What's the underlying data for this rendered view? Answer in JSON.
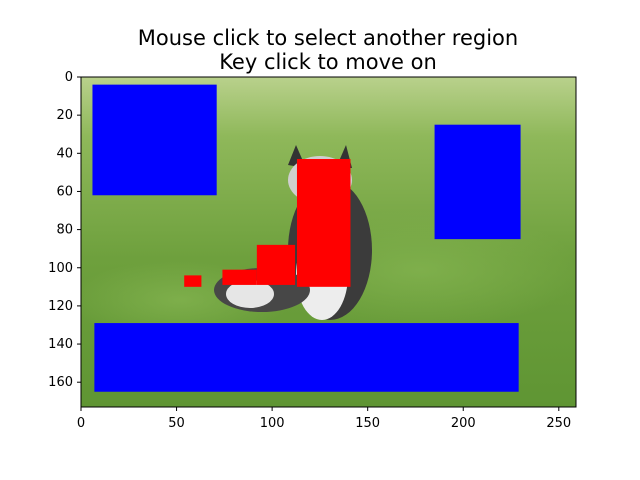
{
  "figure": {
    "title_lines": [
      "Mouse click to select another region",
      "Key click to move on"
    ]
  },
  "image": {
    "description": "photo",
    "colors": {
      "sky_grass_top": "#b7cf8a",
      "grass": "#6fa13e",
      "grass_dark": "#4f8229",
      "dog_dark": "#3a3a3a",
      "dog_light": "#e9e9e9"
    }
  },
  "chart_data": {
    "type": "image",
    "xlim": [
      0,
      259
    ],
    "ylim": [
      173,
      0
    ],
    "x_ticks": [
      0,
      50,
      100,
      150,
      200,
      250
    ],
    "y_ticks": [
      0,
      20,
      40,
      60,
      80,
      100,
      120,
      140,
      160
    ],
    "regions": [
      {
        "label": "region",
        "color": "#0000ff",
        "x0": 6,
        "x1": 71,
        "y0": 4,
        "y1": 62
      },
      {
        "label": "region",
        "color": "#0000ff",
        "x0": 185,
        "x1": 230,
        "y0": 25,
        "y1": 85
      },
      {
        "label": "region",
        "color": "#0000ff",
        "x0": 7,
        "x1": 229,
        "y0": 129,
        "y1": 165
      },
      {
        "label": "region",
        "color": "#ff0000",
        "x0": 113,
        "x1": 141,
        "y0": 43,
        "y1": 110
      },
      {
        "label": "region",
        "color": "#ff0000",
        "x0": 92,
        "x1": 112,
        "y0": 88,
        "y1": 109
      },
      {
        "label": "region",
        "color": "#ff0000",
        "x0": 74,
        "x1": 92,
        "y0": 101,
        "y1": 109
      },
      {
        "label": "region",
        "color": "#ff0000",
        "x0": 54,
        "x1": 63,
        "y0": 104,
        "y1": 110
      }
    ]
  }
}
